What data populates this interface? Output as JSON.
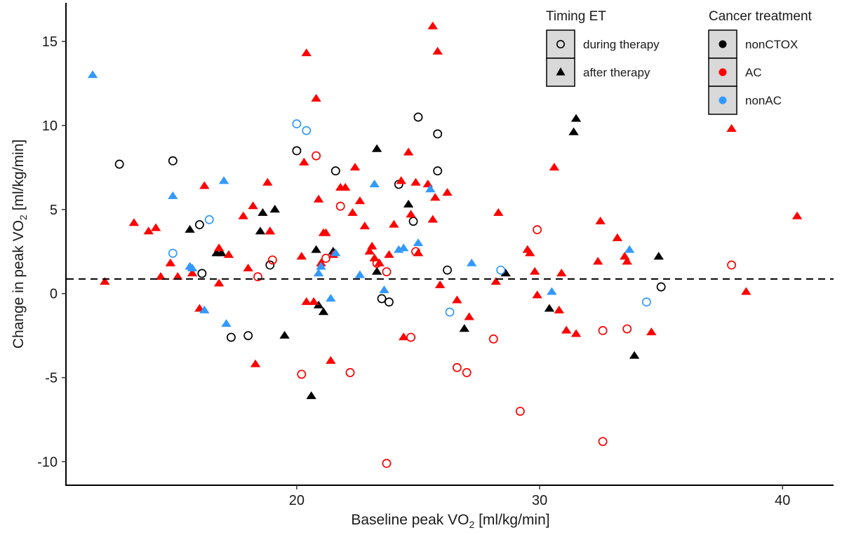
{
  "chart_data": {
    "type": "scatter",
    "title": "",
    "xlabel": "Baseline peak VO",
    "xlabel_sub": "2",
    "xlabel_suffix": " [ml/kg/min]",
    "ylabel": "Change in peak VO",
    "ylabel_sub": "2",
    "ylabel_suffix": " [ml/kg/min]",
    "xlim": [
      10.5,
      42.1
    ],
    "ylim": [
      -11.4,
      17.3
    ],
    "xticks": [
      20,
      30,
      40
    ],
    "xtick_labels": [
      "20",
      "30",
      "40"
    ],
    "yticks": [
      15,
      10,
      5,
      0,
      -5,
      -10
    ],
    "ytick_labels": [
      "15",
      "10",
      "5",
      "0",
      "-5",
      "-10"
    ],
    "grid": false,
    "reference_line": {
      "y": 0.87,
      "style": "dashed",
      "color": "#000000"
    },
    "legends": [
      {
        "title": "Timing ET",
        "placement": "top-right",
        "entries": [
          {
            "label": "during therapy",
            "shape": "open-circle"
          },
          {
            "label": "after therapy",
            "shape": "filled-triangle"
          }
        ]
      },
      {
        "title": "Cancer treatment",
        "placement": "top-right",
        "entries": [
          {
            "label": "nonCTOX",
            "color": "#000000"
          },
          {
            "label": "AC",
            "color": "#ff0000"
          },
          {
            "label": "nonAC",
            "color": "#3399ff"
          }
        ]
      }
    ],
    "colors": {
      "nonCTOX": "#000000",
      "AC": "#ff0000",
      "nonAC": "#3399ff"
    },
    "series": [
      {
        "name": "nonCTOX / during therapy",
        "treatment": "nonCTOX",
        "timing": "during therapy",
        "x": [
          12.7,
          14.9,
          16.0,
          16.1,
          17.3,
          18.0,
          18.9,
          20.0,
          21.6,
          23.5,
          23.8,
          24.2,
          24.8,
          25.0,
          25.8,
          25.8,
          26.2,
          35.0
        ],
        "y": [
          7.7,
          7.9,
          4.1,
          1.2,
          -2.6,
          -2.5,
          1.7,
          8.5,
          7.3,
          -0.3,
          -0.5,
          6.5,
          4.3,
          10.5,
          9.5,
          7.3,
          1.4,
          0.4
        ]
      },
      {
        "name": "nonCTOX / after therapy",
        "treatment": "nonCTOX",
        "timing": "after therapy",
        "x": [
          15.6,
          16.7,
          16.9,
          18.5,
          18.6,
          19.1,
          19.5,
          20.6,
          20.8,
          20.9,
          21.1,
          21.5,
          23.3,
          23.3,
          24.6,
          26.9,
          28.6,
          30.4,
          31.4,
          31.5,
          33.9,
          34.9
        ],
        "y": [
          3.8,
          2.4,
          2.4,
          3.7,
          4.8,
          5.0,
          -2.5,
          -6.1,
          2.6,
          -0.7,
          -1.1,
          2.5,
          8.6,
          1.3,
          5.3,
          -2.1,
          1.2,
          -0.9,
          9.6,
          10.4,
          -3.7,
          2.2
        ]
      },
      {
        "name": "AC / during therapy",
        "treatment": "AC",
        "timing": "during therapy",
        "x": [
          18.4,
          19.0,
          20.2,
          20.8,
          21.2,
          21.8,
          22.2,
          23.3,
          23.7,
          23.7,
          24.7,
          24.9,
          26.6,
          27.0,
          28.1,
          29.2,
          29.9,
          32.6,
          32.6,
          33.6,
          37.9
        ],
        "y": [
          1.0,
          2.0,
          -4.8,
          8.2,
          2.1,
          5.2,
          -4.7,
          1.8,
          1.3,
          -10.1,
          -2.6,
          2.5,
          -4.4,
          -4.7,
          -2.7,
          -7.0,
          3.8,
          -2.2,
          -8.8,
          -2.1,
          1.7
        ]
      },
      {
        "name": "AC / after therapy",
        "treatment": "AC",
        "timing": "after therapy",
        "x": [
          12.1,
          13.3,
          13.9,
          14.2,
          14.4,
          14.8,
          15.1,
          15.7,
          16.0,
          16.2,
          16.8,
          16.8,
          17.2,
          17.8,
          18.0,
          18.2,
          18.3,
          18.8,
          18.9,
          18.9,
          20.2,
          20.3,
          20.4,
          20.4,
          20.7,
          20.8,
          20.9,
          21.0,
          21.1,
          21.2,
          21.4,
          21.5,
          21.8,
          22.0,
          22.3,
          22.4,
          22.6,
          22.8,
          23.0,
          23.1,
          23.2,
          23.4,
          23.8,
          24.0,
          24.3,
          24.4,
          24.6,
          24.7,
          24.9,
          25.0,
          25.4,
          25.6,
          25.6,
          25.7,
          25.8,
          25.9,
          26.2,
          26.6,
          27.1,
          28.2,
          28.3,
          29.5,
          29.6,
          29.8,
          29.9,
          30.6,
          30.8,
          30.9,
          31.1,
          31.5,
          32.4,
          32.5,
          33.2,
          33.5,
          33.6,
          34.6,
          37.9,
          38.5,
          40.6
        ],
        "y": [
          0.7,
          4.2,
          3.7,
          3.9,
          1.0,
          1.8,
          1.0,
          1.2,
          -0.9,
          6.4,
          2.7,
          0.6,
          2.3,
          4.6,
          1.5,
          5.2,
          -4.2,
          6.6,
          3.7,
          3.7,
          2.2,
          7.8,
          14.3,
          -0.5,
          -0.5,
          11.6,
          5.6,
          1.8,
          3.6,
          3.6,
          -4.0,
          2.3,
          6.3,
          6.3,
          4.8,
          7.5,
          5.5,
          4.0,
          2.5,
          2.8,
          2.1,
          1.8,
          2.3,
          4.1,
          6.7,
          -2.6,
          8.4,
          4.7,
          6.6,
          2.4,
          6.5,
          15.9,
          4.4,
          5.7,
          14.4,
          0.5,
          6.0,
          -0.4,
          -1.4,
          0.7,
          4.8,
          2.6,
          2.4,
          1.3,
          -0.1,
          7.5,
          -1.0,
          1.2,
          -2.2,
          -2.4,
          1.9,
          4.3,
          3.3,
          2.2,
          1.9,
          -2.3,
          9.8,
          0.1,
          4.6
        ]
      },
      {
        "name": "nonAC / during therapy",
        "treatment": "nonAC",
        "timing": "during therapy",
        "x": [
          14.9,
          16.4,
          20.0,
          20.4,
          26.3,
          28.4,
          34.4
        ],
        "y": [
          2.4,
          4.4,
          10.1,
          9.7,
          -1.1,
          1.4,
          -0.5
        ]
      },
      {
        "name": "nonAC / after therapy",
        "treatment": "nonAC",
        "timing": "after therapy",
        "x": [
          11.6,
          14.9,
          15.6,
          15.7,
          16.2,
          17.0,
          17.1,
          20.9,
          21.0,
          21.4,
          21.6,
          22.6,
          23.2,
          23.6,
          24.2,
          24.4,
          25.0,
          25.5,
          27.2,
          30.5,
          33.7
        ],
        "y": [
          13.0,
          5.8,
          1.6,
          1.5,
          -1.0,
          6.7,
          -1.8,
          1.2,
          1.6,
          -0.3,
          2.4,
          1.1,
          6.5,
          0.2,
          2.6,
          2.7,
          3.0,
          6.2,
          1.8,
          0.1,
          2.6
        ]
      }
    ]
  }
}
